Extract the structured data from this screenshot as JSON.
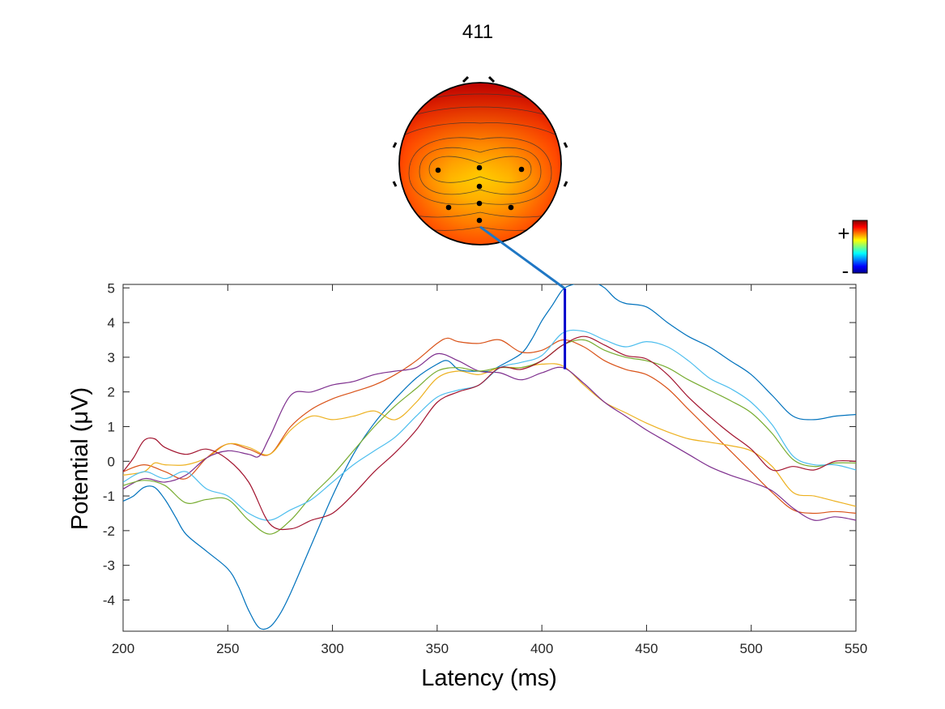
{
  "chart_data": {
    "type": "line",
    "title": "411",
    "xlabel": "Latency (ms)",
    "ylabel": "Potential (μV)",
    "xlim": [
      200,
      550
    ],
    "ylim": [
      -4.9,
      5.1
    ],
    "x_ticks": [
      200,
      250,
      300,
      350,
      400,
      450,
      500,
      550
    ],
    "y_ticks": [
      -4,
      -3,
      -2,
      -1,
      0,
      1,
      2,
      3,
      4,
      5
    ],
    "x_tick_labels": [
      "200",
      "250",
      "300",
      "350",
      "400",
      "450",
      "500",
      "550"
    ],
    "y_tick_labels": [
      "-4",
      "-3",
      "-2",
      "-1",
      "0",
      "1",
      "2",
      "3",
      "4",
      "5"
    ],
    "grid": false,
    "marker_latency": 411,
    "colorbar": {
      "plus_label": "+",
      "minus_label": "-",
      "colormap": "jet"
    },
    "series": [
      {
        "color": "#0072BD",
        "points": [
          [
            200,
            -1.15
          ],
          [
            205,
            -1.0
          ],
          [
            210,
            -0.75
          ],
          [
            215,
            -0.75
          ],
          [
            220,
            -1.1
          ],
          [
            225,
            -1.6
          ],
          [
            230,
            -2.1
          ],
          [
            240,
            -2.6
          ],
          [
            250,
            -3.1
          ],
          [
            255,
            -3.6
          ],
          [
            260,
            -4.3
          ],
          [
            265,
            -4.8
          ],
          [
            270,
            -4.78
          ],
          [
            275,
            -4.4
          ],
          [
            280,
            -3.8
          ],
          [
            290,
            -2.4
          ],
          [
            300,
            -1.0
          ],
          [
            310,
            0.2
          ],
          [
            320,
            1.1
          ],
          [
            330,
            1.8
          ],
          [
            340,
            2.4
          ],
          [
            350,
            2.8
          ],
          [
            355,
            2.9
          ],
          [
            360,
            2.65
          ],
          [
            365,
            2.6
          ],
          [
            370,
            2.6
          ],
          [
            375,
            2.6
          ],
          [
            380,
            2.75
          ],
          [
            390,
            3.1
          ],
          [
            395,
            3.5
          ],
          [
            400,
            4.05
          ],
          [
            405,
            4.5
          ],
          [
            410,
            4.95
          ],
          [
            415,
            5.1
          ],
          [
            420,
            5.15
          ],
          [
            425,
            5.15
          ],
          [
            430,
            5.0
          ],
          [
            435,
            4.7
          ],
          [
            440,
            4.55
          ],
          [
            450,
            4.45
          ],
          [
            460,
            4.0
          ],
          [
            470,
            3.6
          ],
          [
            480,
            3.3
          ],
          [
            490,
            2.9
          ],
          [
            500,
            2.5
          ],
          [
            510,
            1.9
          ],
          [
            520,
            1.3
          ],
          [
            530,
            1.2
          ],
          [
            540,
            1.3
          ],
          [
            550,
            1.35
          ]
        ]
      },
      {
        "color": "#D95319",
        "points": [
          [
            200,
            -0.3
          ],
          [
            210,
            -0.1
          ],
          [
            220,
            -0.3
          ],
          [
            230,
            -0.5
          ],
          [
            240,
            0.1
          ],
          [
            250,
            0.5
          ],
          [
            260,
            0.35
          ],
          [
            270,
            0.2
          ],
          [
            280,
            1.0
          ],
          [
            290,
            1.5
          ],
          [
            300,
            1.8
          ],
          [
            310,
            2.0
          ],
          [
            320,
            2.2
          ],
          [
            330,
            2.5
          ],
          [
            340,
            2.9
          ],
          [
            350,
            3.4
          ],
          [
            355,
            3.55
          ],
          [
            360,
            3.45
          ],
          [
            370,
            3.4
          ],
          [
            380,
            3.5
          ],
          [
            390,
            3.15
          ],
          [
            400,
            3.2
          ],
          [
            410,
            3.5
          ],
          [
            420,
            3.3
          ],
          [
            430,
            2.9
          ],
          [
            440,
            2.65
          ],
          [
            450,
            2.5
          ],
          [
            460,
            2.1
          ],
          [
            470,
            1.5
          ],
          [
            480,
            0.9
          ],
          [
            490,
            0.3
          ],
          [
            500,
            -0.3
          ],
          [
            510,
            -0.9
          ],
          [
            520,
            -1.4
          ],
          [
            530,
            -1.5
          ],
          [
            540,
            -1.45
          ],
          [
            550,
            -1.5
          ]
        ]
      },
      {
        "color": "#EDB120",
        "points": [
          [
            200,
            -0.4
          ],
          [
            210,
            -0.3
          ],
          [
            215,
            -0.05
          ],
          [
            220,
            -0.1
          ],
          [
            230,
            -0.1
          ],
          [
            240,
            0.1
          ],
          [
            250,
            0.5
          ],
          [
            260,
            0.4
          ],
          [
            270,
            0.2
          ],
          [
            280,
            0.9
          ],
          [
            290,
            1.3
          ],
          [
            300,
            1.2
          ],
          [
            310,
            1.3
          ],
          [
            320,
            1.45
          ],
          [
            330,
            1.2
          ],
          [
            340,
            1.7
          ],
          [
            350,
            2.4
          ],
          [
            360,
            2.6
          ],
          [
            370,
            2.5
          ],
          [
            380,
            2.7
          ],
          [
            390,
            2.7
          ],
          [
            400,
            2.8
          ],
          [
            410,
            2.75
          ],
          [
            420,
            2.2
          ],
          [
            430,
            1.7
          ],
          [
            440,
            1.4
          ],
          [
            450,
            1.1
          ],
          [
            460,
            0.85
          ],
          [
            470,
            0.65
          ],
          [
            480,
            0.55
          ],
          [
            490,
            0.45
          ],
          [
            500,
            0.3
          ],
          [
            510,
            -0.15
          ],
          [
            520,
            -0.9
          ],
          [
            530,
            -1.0
          ],
          [
            540,
            -1.15
          ],
          [
            550,
            -1.3
          ]
        ]
      },
      {
        "color": "#7E2F8E",
        "points": [
          [
            200,
            -0.8
          ],
          [
            210,
            -0.5
          ],
          [
            220,
            -0.6
          ],
          [
            230,
            -0.4
          ],
          [
            240,
            0.1
          ],
          [
            250,
            0.3
          ],
          [
            260,
            0.2
          ],
          [
            265,
            0.15
          ],
          [
            270,
            0.7
          ],
          [
            280,
            1.9
          ],
          [
            290,
            2.0
          ],
          [
            300,
            2.2
          ],
          [
            310,
            2.3
          ],
          [
            320,
            2.5
          ],
          [
            330,
            2.6
          ],
          [
            340,
            2.7
          ],
          [
            350,
            3.1
          ],
          [
            360,
            2.9
          ],
          [
            370,
            2.6
          ],
          [
            380,
            2.55
          ],
          [
            390,
            2.35
          ],
          [
            400,
            2.55
          ],
          [
            410,
            2.7
          ],
          [
            420,
            2.25
          ],
          [
            430,
            1.7
          ],
          [
            440,
            1.3
          ],
          [
            450,
            0.9
          ],
          [
            460,
            0.55
          ],
          [
            470,
            0.2
          ],
          [
            480,
            -0.15
          ],
          [
            490,
            -0.4
          ],
          [
            500,
            -0.6
          ],
          [
            510,
            -0.85
          ],
          [
            520,
            -1.35
          ],
          [
            530,
            -1.7
          ],
          [
            540,
            -1.6
          ],
          [
            550,
            -1.7
          ]
        ]
      },
      {
        "color": "#77AC30",
        "points": [
          [
            200,
            -0.7
          ],
          [
            210,
            -0.55
          ],
          [
            220,
            -0.7
          ],
          [
            230,
            -1.2
          ],
          [
            240,
            -1.1
          ],
          [
            250,
            -1.1
          ],
          [
            260,
            -1.7
          ],
          [
            270,
            -2.1
          ],
          [
            280,
            -1.7
          ],
          [
            290,
            -1.0
          ],
          [
            300,
            -0.4
          ],
          [
            310,
            0.3
          ],
          [
            320,
            1.0
          ],
          [
            330,
            1.6
          ],
          [
            340,
            2.1
          ],
          [
            350,
            2.6
          ],
          [
            360,
            2.7
          ],
          [
            370,
            2.6
          ],
          [
            380,
            2.7
          ],
          [
            390,
            2.7
          ],
          [
            400,
            2.9
          ],
          [
            410,
            3.35
          ],
          [
            420,
            3.5
          ],
          [
            430,
            3.2
          ],
          [
            440,
            3.0
          ],
          [
            450,
            2.9
          ],
          [
            460,
            2.7
          ],
          [
            470,
            2.35
          ],
          [
            480,
            2.05
          ],
          [
            490,
            1.75
          ],
          [
            500,
            1.4
          ],
          [
            510,
            0.8
          ],
          [
            520,
            0.05
          ],
          [
            530,
            -0.15
          ],
          [
            540,
            -0.05
          ],
          [
            550,
            -0.05
          ]
        ]
      },
      {
        "color": "#4DBEEE",
        "points": [
          [
            200,
            -0.6
          ],
          [
            210,
            -0.3
          ],
          [
            220,
            -0.5
          ],
          [
            230,
            -0.3
          ],
          [
            240,
            -0.8
          ],
          [
            250,
            -1.0
          ],
          [
            260,
            -1.5
          ],
          [
            270,
            -1.7
          ],
          [
            280,
            -1.4
          ],
          [
            290,
            -1.1
          ],
          [
            300,
            -0.6
          ],
          [
            310,
            -0.1
          ],
          [
            320,
            0.3
          ],
          [
            330,
            0.7
          ],
          [
            340,
            1.3
          ],
          [
            350,
            1.85
          ],
          [
            360,
            2.05
          ],
          [
            370,
            2.2
          ],
          [
            380,
            2.7
          ],
          [
            390,
            2.85
          ],
          [
            400,
            3.05
          ],
          [
            410,
            3.7
          ],
          [
            420,
            3.75
          ],
          [
            430,
            3.5
          ],
          [
            440,
            3.3
          ],
          [
            450,
            3.45
          ],
          [
            460,
            3.3
          ],
          [
            470,
            2.9
          ],
          [
            480,
            2.4
          ],
          [
            490,
            2.1
          ],
          [
            500,
            1.7
          ],
          [
            510,
            1.05
          ],
          [
            520,
            0.15
          ],
          [
            530,
            -0.1
          ],
          [
            540,
            -0.1
          ],
          [
            550,
            -0.25
          ]
        ]
      },
      {
        "color": "#A2142F",
        "points": [
          [
            200,
            -0.3
          ],
          [
            205,
            0.1
          ],
          [
            210,
            0.6
          ],
          [
            215,
            0.65
          ],
          [
            220,
            0.4
          ],
          [
            230,
            0.2
          ],
          [
            240,
            0.35
          ],
          [
            250,
            0.05
          ],
          [
            260,
            -0.6
          ],
          [
            270,
            -1.8
          ],
          [
            280,
            -1.95
          ],
          [
            290,
            -1.7
          ],
          [
            300,
            -1.5
          ],
          [
            310,
            -0.95
          ],
          [
            320,
            -0.3
          ],
          [
            330,
            0.25
          ],
          [
            340,
            0.9
          ],
          [
            350,
            1.7
          ],
          [
            360,
            2.0
          ],
          [
            370,
            2.2
          ],
          [
            380,
            2.7
          ],
          [
            390,
            2.65
          ],
          [
            400,
            2.9
          ],
          [
            410,
            3.35
          ],
          [
            420,
            3.6
          ],
          [
            430,
            3.35
          ],
          [
            440,
            3.05
          ],
          [
            450,
            2.95
          ],
          [
            460,
            2.5
          ],
          [
            470,
            1.85
          ],
          [
            480,
            1.3
          ],
          [
            490,
            0.8
          ],
          [
            500,
            0.35
          ],
          [
            510,
            -0.25
          ],
          [
            520,
            -0.15
          ],
          [
            530,
            -0.25
          ],
          [
            540,
            0.0
          ],
          [
            550,
            0.0
          ]
        ]
      }
    ]
  }
}
